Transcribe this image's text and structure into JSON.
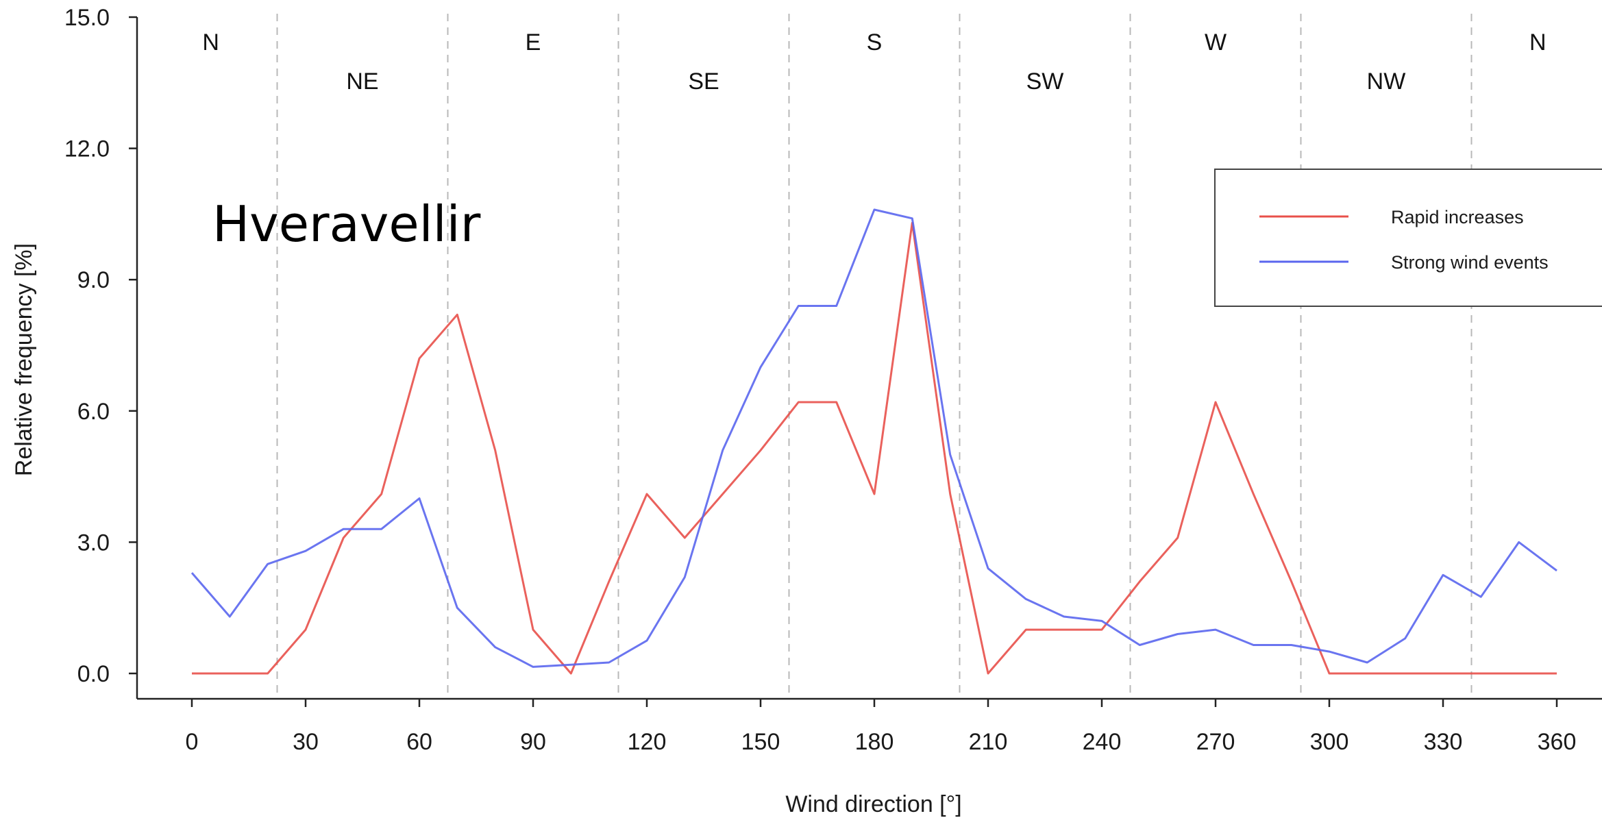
{
  "chart_data": {
    "type": "line",
    "station_label": "Hveravellir",
    "xlabel": "Wind direction [°]",
    "ylabel": "Relative frequency [%]",
    "xlim": [
      0,
      360
    ],
    "ylim": [
      0,
      15
    ],
    "x_ticks": [
      "0",
      "30",
      "60",
      "90",
      "120",
      "150",
      "180",
      "210",
      "240",
      "270",
      "300",
      "330",
      "360"
    ],
    "y_ticks": [
      "0.0",
      "3.0",
      "6.0",
      "9.0",
      "12.0",
      "15.0"
    ],
    "sector_boundaries": [
      22.5,
      67.5,
      112.5,
      157.5,
      202.5,
      247.5,
      292.5,
      337.5
    ],
    "direction_labels": [
      {
        "text": "N",
        "x": 5,
        "row": "upper"
      },
      {
        "text": "NE",
        "x": 45,
        "row": "lower"
      },
      {
        "text": "E",
        "x": 90,
        "row": "upper"
      },
      {
        "text": "SE",
        "x": 135,
        "row": "lower"
      },
      {
        "text": "S",
        "x": 180,
        "row": "upper"
      },
      {
        "text": "SW",
        "x": 225,
        "row": "lower"
      },
      {
        "text": "W",
        "x": 270,
        "row": "upper"
      },
      {
        "text": "NW",
        "x": 315,
        "row": "lower"
      },
      {
        "text": "N",
        "x": 355,
        "row": "upper"
      }
    ],
    "x": [
      0,
      10,
      20,
      30,
      40,
      50,
      60,
      70,
      80,
      90,
      100,
      110,
      120,
      130,
      140,
      150,
      160,
      170,
      180,
      190,
      200,
      210,
      220,
      230,
      240,
      250,
      260,
      270,
      280,
      290,
      300,
      310,
      320,
      330,
      340,
      350,
      360
    ],
    "series": [
      {
        "name": "Rapid increases",
        "color": "#e8504a",
        "values": [
          0,
          0,
          0,
          1.0,
          3.1,
          4.1,
          7.2,
          8.2,
          5.1,
          1.0,
          0,
          2.1,
          4.1,
          3.1,
          4.1,
          5.1,
          6.2,
          6.2,
          4.1,
          10.3,
          4.1,
          0,
          1.0,
          1.0,
          1.0,
          2.1,
          3.1,
          6.2,
          4.1,
          2.1,
          0,
          0,
          0,
          0,
          0,
          0,
          0
        ]
      },
      {
        "name": "Strong wind events",
        "color": "#5a66ee",
        "values": [
          2.3,
          1.3,
          2.5,
          2.8,
          3.3,
          3.3,
          4.0,
          1.5,
          0.6,
          0.15,
          0.2,
          0.25,
          0.75,
          2.2,
          5.1,
          7.0,
          8.4,
          8.4,
          10.6,
          10.4,
          5.0,
          2.4,
          1.7,
          1.3,
          1.2,
          0.65,
          0.9,
          1.0,
          0.65,
          0.65,
          0.5,
          0.25,
          0.8,
          2.25,
          1.75,
          3.0,
          2.35
        ]
      }
    ],
    "legend": {
      "placement": "top-right"
    }
  }
}
